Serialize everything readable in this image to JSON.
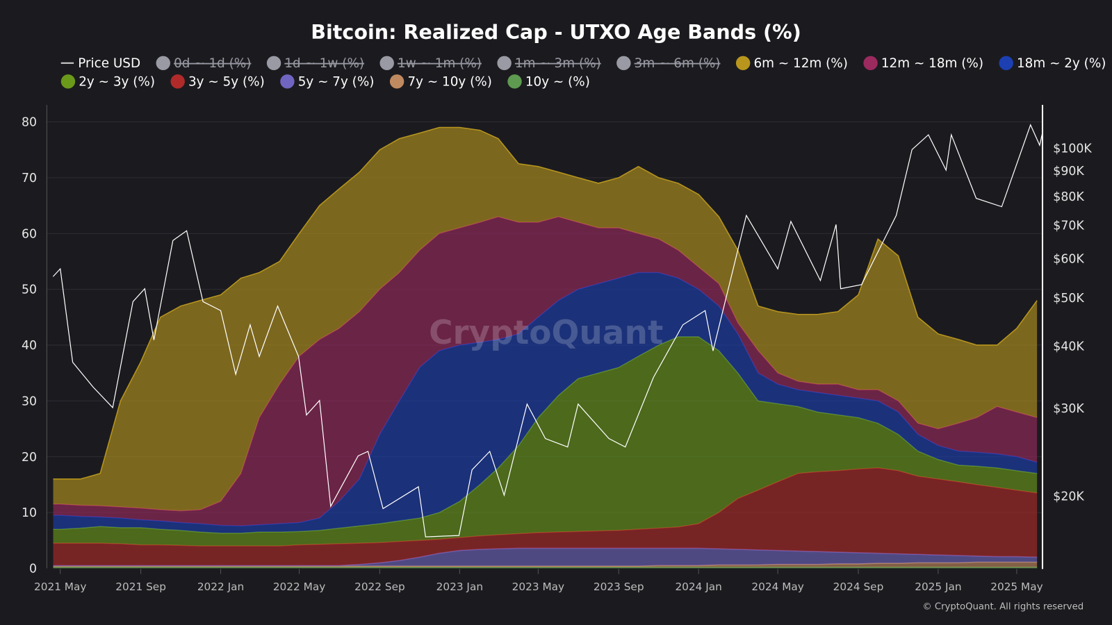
{
  "chart_data": {
    "type": "area",
    "stacked": true,
    "title": "Bitcoin: Realized Cap - UTXO Age Bands (%)",
    "footer": "© CryptoQuant. All rights reserved",
    "watermark": "CryptoQuant",
    "y_left": {
      "range": [
        0,
        80
      ],
      "ticks": [
        "0",
        "10",
        "20",
        "30",
        "40",
        "50",
        "60",
        "70",
        "80"
      ],
      "grid": true
    },
    "y_right": {
      "scale": "log",
      "ticks": [
        {
          "label": "$20K",
          "value": 20000
        },
        {
          "label": "$30K",
          "value": 30000
        },
        {
          "label": "$40K",
          "value": 40000
        },
        {
          "label": "$50K",
          "value": 50000
        },
        {
          "label": "$60K",
          "value": 60000
        },
        {
          "label": "$70K",
          "value": 70000
        },
        {
          "label": "$80K",
          "value": 80000
        },
        {
          "label": "$90K",
          "value": 90000
        },
        {
          "label": "$100K",
          "value": 100000
        }
      ]
    },
    "x_ticks": [
      "2021 May",
      "2021 Sep",
      "2022 Jan",
      "2022 May",
      "2022 Sep",
      "2023 Jan",
      "2023 May",
      "2023 Sep",
      "2024 Jan",
      "2024 May",
      "2024 Sep",
      "2025 Jan",
      "2025 May"
    ],
    "legend": {
      "placement": "top",
      "items": [
        {
          "name": "Price USD",
          "color": "#ffffff",
          "type": "line",
          "enabled": true
        },
        {
          "name": "0d ~ 1d (%)",
          "color": "#9a9aa5",
          "enabled": false
        },
        {
          "name": "1d ~ 1w (%)",
          "color": "#9a9aa5",
          "enabled": false
        },
        {
          "name": "1w ~ 1m (%)",
          "color": "#9a9aa5",
          "enabled": false
        },
        {
          "name": "1m ~ 3m (%)",
          "color": "#9a9aa5",
          "enabled": false
        },
        {
          "name": "3m ~ 6m (%)",
          "color": "#9a9aa5",
          "enabled": false
        },
        {
          "name": "6m ~ 12m (%)",
          "color": "#b8961e",
          "enabled": true
        },
        {
          "name": "12m ~ 18m (%)",
          "color": "#9b2a5f",
          "enabled": true
        },
        {
          "name": "18m ~ 2y (%)",
          "color": "#1c3fb2",
          "enabled": true
        },
        {
          "name": "2y ~ 3y (%)",
          "color": "#6b9a1b",
          "enabled": true
        },
        {
          "name": "3y ~ 5y (%)",
          "color": "#b02a2a",
          "enabled": true
        },
        {
          "name": "5y ~ 7y (%)",
          "color": "#7065c0",
          "enabled": true
        },
        {
          "name": "7y ~ 10y (%)",
          "color": "#c08a60",
          "enabled": true
        },
        {
          "name": "10y ~ (%)",
          "color": "#5e9a50",
          "enabled": true
        }
      ]
    },
    "dates": [
      "2021-05",
      "2021-06",
      "2021-07",
      "2021-08",
      "2021-09",
      "2021-10",
      "2021-11",
      "2021-12",
      "2022-01",
      "2022-02",
      "2022-03",
      "2022-04",
      "2022-05",
      "2022-06",
      "2022-07",
      "2022-08",
      "2022-09",
      "2022-10",
      "2022-11",
      "2022-12",
      "2023-01",
      "2023-02",
      "2023-03",
      "2023-04",
      "2023-05",
      "2023-06",
      "2023-07",
      "2023-08",
      "2023-09",
      "2023-10",
      "2023-11",
      "2023-12",
      "2024-01",
      "2024-02",
      "2024-03",
      "2024-04",
      "2024-05",
      "2024-06",
      "2024-07",
      "2024-08",
      "2024-09",
      "2024-10",
      "2024-11",
      "2024-12",
      "2025-01",
      "2025-02",
      "2025-03",
      "2025-04",
      "2025-05",
      "2025-06"
    ],
    "series": [
      {
        "name": "10y ~ (%)",
        "color": "#5e9a50",
        "values": [
          0.2,
          0.2,
          0.2,
          0.2,
          0.2,
          0.2,
          0.2,
          0.2,
          0.2,
          0.2,
          0.2,
          0.2,
          0.2,
          0.2,
          0.2,
          0.2,
          0.2,
          0.2,
          0.2,
          0.2,
          0.2,
          0.2,
          0.2,
          0.2,
          0.2,
          0.2,
          0.2,
          0.2,
          0.2,
          0.2,
          0.2,
          0.2,
          0.2,
          0.2,
          0.2,
          0.2,
          0.2,
          0.2,
          0.2,
          0.2,
          0.2,
          0.2,
          0.2,
          0.2,
          0.2,
          0.2,
          0.2,
          0.2,
          0.2,
          0.2
        ]
      },
      {
        "name": "7y ~ 10y (%)",
        "color": "#c08a60",
        "values": [
          0.2,
          0.2,
          0.2,
          0.2,
          0.2,
          0.2,
          0.2,
          0.2,
          0.2,
          0.2,
          0.2,
          0.2,
          0.2,
          0.2,
          0.2,
          0.2,
          0.2,
          0.2,
          0.2,
          0.2,
          0.2,
          0.2,
          0.2,
          0.2,
          0.2,
          0.2,
          0.2,
          0.2,
          0.2,
          0.2,
          0.3,
          0.3,
          0.3,
          0.4,
          0.4,
          0.4,
          0.5,
          0.5,
          0.5,
          0.6,
          0.6,
          0.7,
          0.7,
          0.8,
          0.8,
          0.8,
          0.9,
          0.9,
          0.9,
          0.9
        ]
      },
      {
        "name": "5y ~ 7y (%)",
        "color": "#7065c0",
        "values": [
          0.1,
          0.1,
          0.1,
          0.1,
          0.1,
          0.1,
          0.1,
          0.1,
          0.1,
          0.1,
          0.1,
          0.1,
          0.1,
          0.1,
          0.1,
          0.3,
          0.6,
          1.0,
          1.6,
          2.3,
          2.8,
          3.0,
          3.1,
          3.2,
          3.2,
          3.2,
          3.2,
          3.2,
          3.2,
          3.2,
          3.1,
          3.1,
          3.1,
          2.9,
          2.8,
          2.7,
          2.5,
          2.4,
          2.3,
          2.1,
          2.0,
          1.8,
          1.7,
          1.5,
          1.4,
          1.3,
          1.1,
          1.0,
          1.0,
          0.9
        ]
      },
      {
        "name": "3y ~ 5y (%)",
        "color": "#b02a2a",
        "values": [
          4.0,
          4.0,
          4.0,
          3.9,
          3.7,
          3.7,
          3.6,
          3.5,
          3.5,
          3.5,
          3.5,
          3.5,
          3.7,
          3.8,
          3.9,
          3.8,
          3.6,
          3.4,
          3.0,
          2.5,
          2.3,
          2.4,
          2.5,
          2.6,
          2.8,
          2.9,
          3.0,
          3.1,
          3.2,
          3.4,
          3.6,
          3.8,
          4.4,
          6.5,
          9.1,
          10.7,
          12.3,
          13.9,
          14.3,
          14.6,
          15.0,
          15.3,
          14.9,
          14.0,
          13.6,
          13.2,
          12.8,
          12.4,
          11.9,
          11.5
        ]
      },
      {
        "name": "2y ~ 3y (%)",
        "color": "#6b9a1b",
        "values": [
          2.5,
          2.7,
          3.0,
          2.9,
          3.1,
          2.8,
          2.7,
          2.5,
          2.3,
          2.3,
          2.5,
          2.5,
          2.4,
          2.5,
          2.8,
          3.1,
          3.4,
          3.7,
          4.0,
          4.8,
          6.5,
          9.2,
          12.0,
          15.8,
          20.6,
          24.5,
          27.4,
          28.3,
          29.2,
          31.0,
          32.8,
          34.1,
          33.5,
          29.0,
          22.5,
          16.0,
          14.0,
          12.0,
          10.7,
          10.0,
          9.2,
          8.0,
          6.5,
          4.5,
          3.5,
          3.0,
          3.3,
          3.5,
          3.5,
          3.5
        ]
      },
      {
        "name": "18m ~ 2y (%)",
        "color": "#1c3fb2",
        "values": [
          2.5,
          2.1,
          1.7,
          1.7,
          1.4,
          1.5,
          1.4,
          1.5,
          1.4,
          1.3,
          1.3,
          1.5,
          1.6,
          2.2,
          4.8,
          8.4,
          16.0,
          21.5,
          27.0,
          29.0,
          28.0,
          25.5,
          23.0,
          20.0,
          18.0,
          17.0,
          16.0,
          16.0,
          16.0,
          15.0,
          13.0,
          10.5,
          8.5,
          8.0,
          7.0,
          5.0,
          3.5,
          3.0,
          3.5,
          3.5,
          3.5,
          4.0,
          4.0,
          3.0,
          2.5,
          2.5,
          2.5,
          2.5,
          2.5,
          2.0
        ]
      },
      {
        "name": "12m ~ 18m (%)",
        "color": "#9b2a5f",
        "values": [
          2.0,
          2.0,
          2.0,
          2.0,
          2.1,
          2.0,
          2.1,
          2.5,
          4.3,
          9.4,
          19.2,
          25.0,
          29.8,
          32.0,
          31.0,
          30.0,
          26.0,
          23.0,
          21.0,
          21.0,
          21.0,
          21.5,
          22.0,
          20.0,
          17.0,
          15.0,
          12.0,
          10.0,
          9.0,
          7.0,
          6.0,
          5.0,
          4.0,
          4.0,
          2.0,
          4.0,
          2.0,
          1.5,
          1.5,
          2.0,
          1.5,
          2.0,
          2.0,
          2.0,
          3.0,
          5.0,
          6.2,
          8.5,
          8.0,
          8.0
        ]
      },
      {
        "name": "6m ~ 12m (%)",
        "color": "#b8961e",
        "values": [
          4.5,
          4.7,
          5.8,
          19.0,
          26.2,
          34.5,
          36.7,
          37.5,
          37.0,
          35.0,
          26.0,
          22.0,
          22.0,
          24.0,
          25.0,
          25.0,
          25.0,
          24.0,
          21.0,
          19.0,
          18.0,
          16.5,
          14.0,
          10.5,
          10.0,
          8.0,
          8.0,
          8.0,
          9.0,
          12.0,
          11.0,
          12.0,
          13.0,
          12.0,
          13.0,
          8.0,
          11.0,
          12.0,
          12.5,
          13.0,
          17.0,
          27.0,
          26.0,
          19.0,
          17.0,
          15.0,
          13.0,
          11.0,
          15.0,
          21.0
        ]
      }
    ],
    "price": {
      "name": "Price USD",
      "points": [
        [
          "2021-04-20",
          55000
        ],
        [
          "2021-05-01",
          57000
        ],
        [
          "2021-05-20",
          37000
        ],
        [
          "2021-06-20",
          33000
        ],
        [
          "2021-07-20",
          30000
        ],
        [
          "2021-08-20",
          49000
        ],
        [
          "2021-09-07",
          52000
        ],
        [
          "2021-09-21",
          41000
        ],
        [
          "2021-10-20",
          65000
        ],
        [
          "2021-11-10",
          68000
        ],
        [
          "2021-12-05",
          49000
        ],
        [
          "2022-01-01",
          47000
        ],
        [
          "2022-01-24",
          35000
        ],
        [
          "2022-02-15",
          44000
        ],
        [
          "2022-03-01",
          38000
        ],
        [
          "2022-03-29",
          48000
        ],
        [
          "2022-04-30",
          38000
        ],
        [
          "2022-05-12",
          29000
        ],
        [
          "2022-06-01",
          31000
        ],
        [
          "2022-06-18",
          19000
        ],
        [
          "2022-07-30",
          24000
        ],
        [
          "2022-08-14",
          24500
        ],
        [
          "2022-09-06",
          18800
        ],
        [
          "2022-10-30",
          20800
        ],
        [
          "2022-11-10",
          16500
        ],
        [
          "2022-12-31",
          16600
        ],
        [
          "2023-01-20",
          22500
        ],
        [
          "2023-02-16",
          24500
        ],
        [
          "2023-03-10",
          20000
        ],
        [
          "2023-04-14",
          30500
        ],
        [
          "2023-05-12",
          26000
        ],
        [
          "2023-06-15",
          25000
        ],
        [
          "2023-07-01",
          30500
        ],
        [
          "2023-08-17",
          26000
        ],
        [
          "2023-09-11",
          25000
        ],
        [
          "2023-10-24",
          34500
        ],
        [
          "2023-12-08",
          44000
        ],
        [
          "2024-01-11",
          47000
        ],
        [
          "2024-01-23",
          39000
        ],
        [
          "2024-03-14",
          73000
        ],
        [
          "2024-05-01",
          57000
        ],
        [
          "2024-05-21",
          71000
        ],
        [
          "2024-07-05",
          54000
        ],
        [
          "2024-07-29",
          70000
        ],
        [
          "2024-08-05",
          52000
        ],
        [
          "2024-09-06",
          53000
        ],
        [
          "2024-10-29",
          73000
        ],
        [
          "2024-11-22",
          99000
        ],
        [
          "2024-12-17",
          106000
        ],
        [
          "2025-01-13",
          90000
        ],
        [
          "2025-01-21",
          106000
        ],
        [
          "2025-02-28",
          79000
        ],
        [
          "2025-04-08",
          76000
        ],
        [
          "2025-05-22",
          111000
        ],
        [
          "2025-06-05",
          101000
        ],
        [
          "2025-06-10",
          108000
        ]
      ]
    }
  }
}
